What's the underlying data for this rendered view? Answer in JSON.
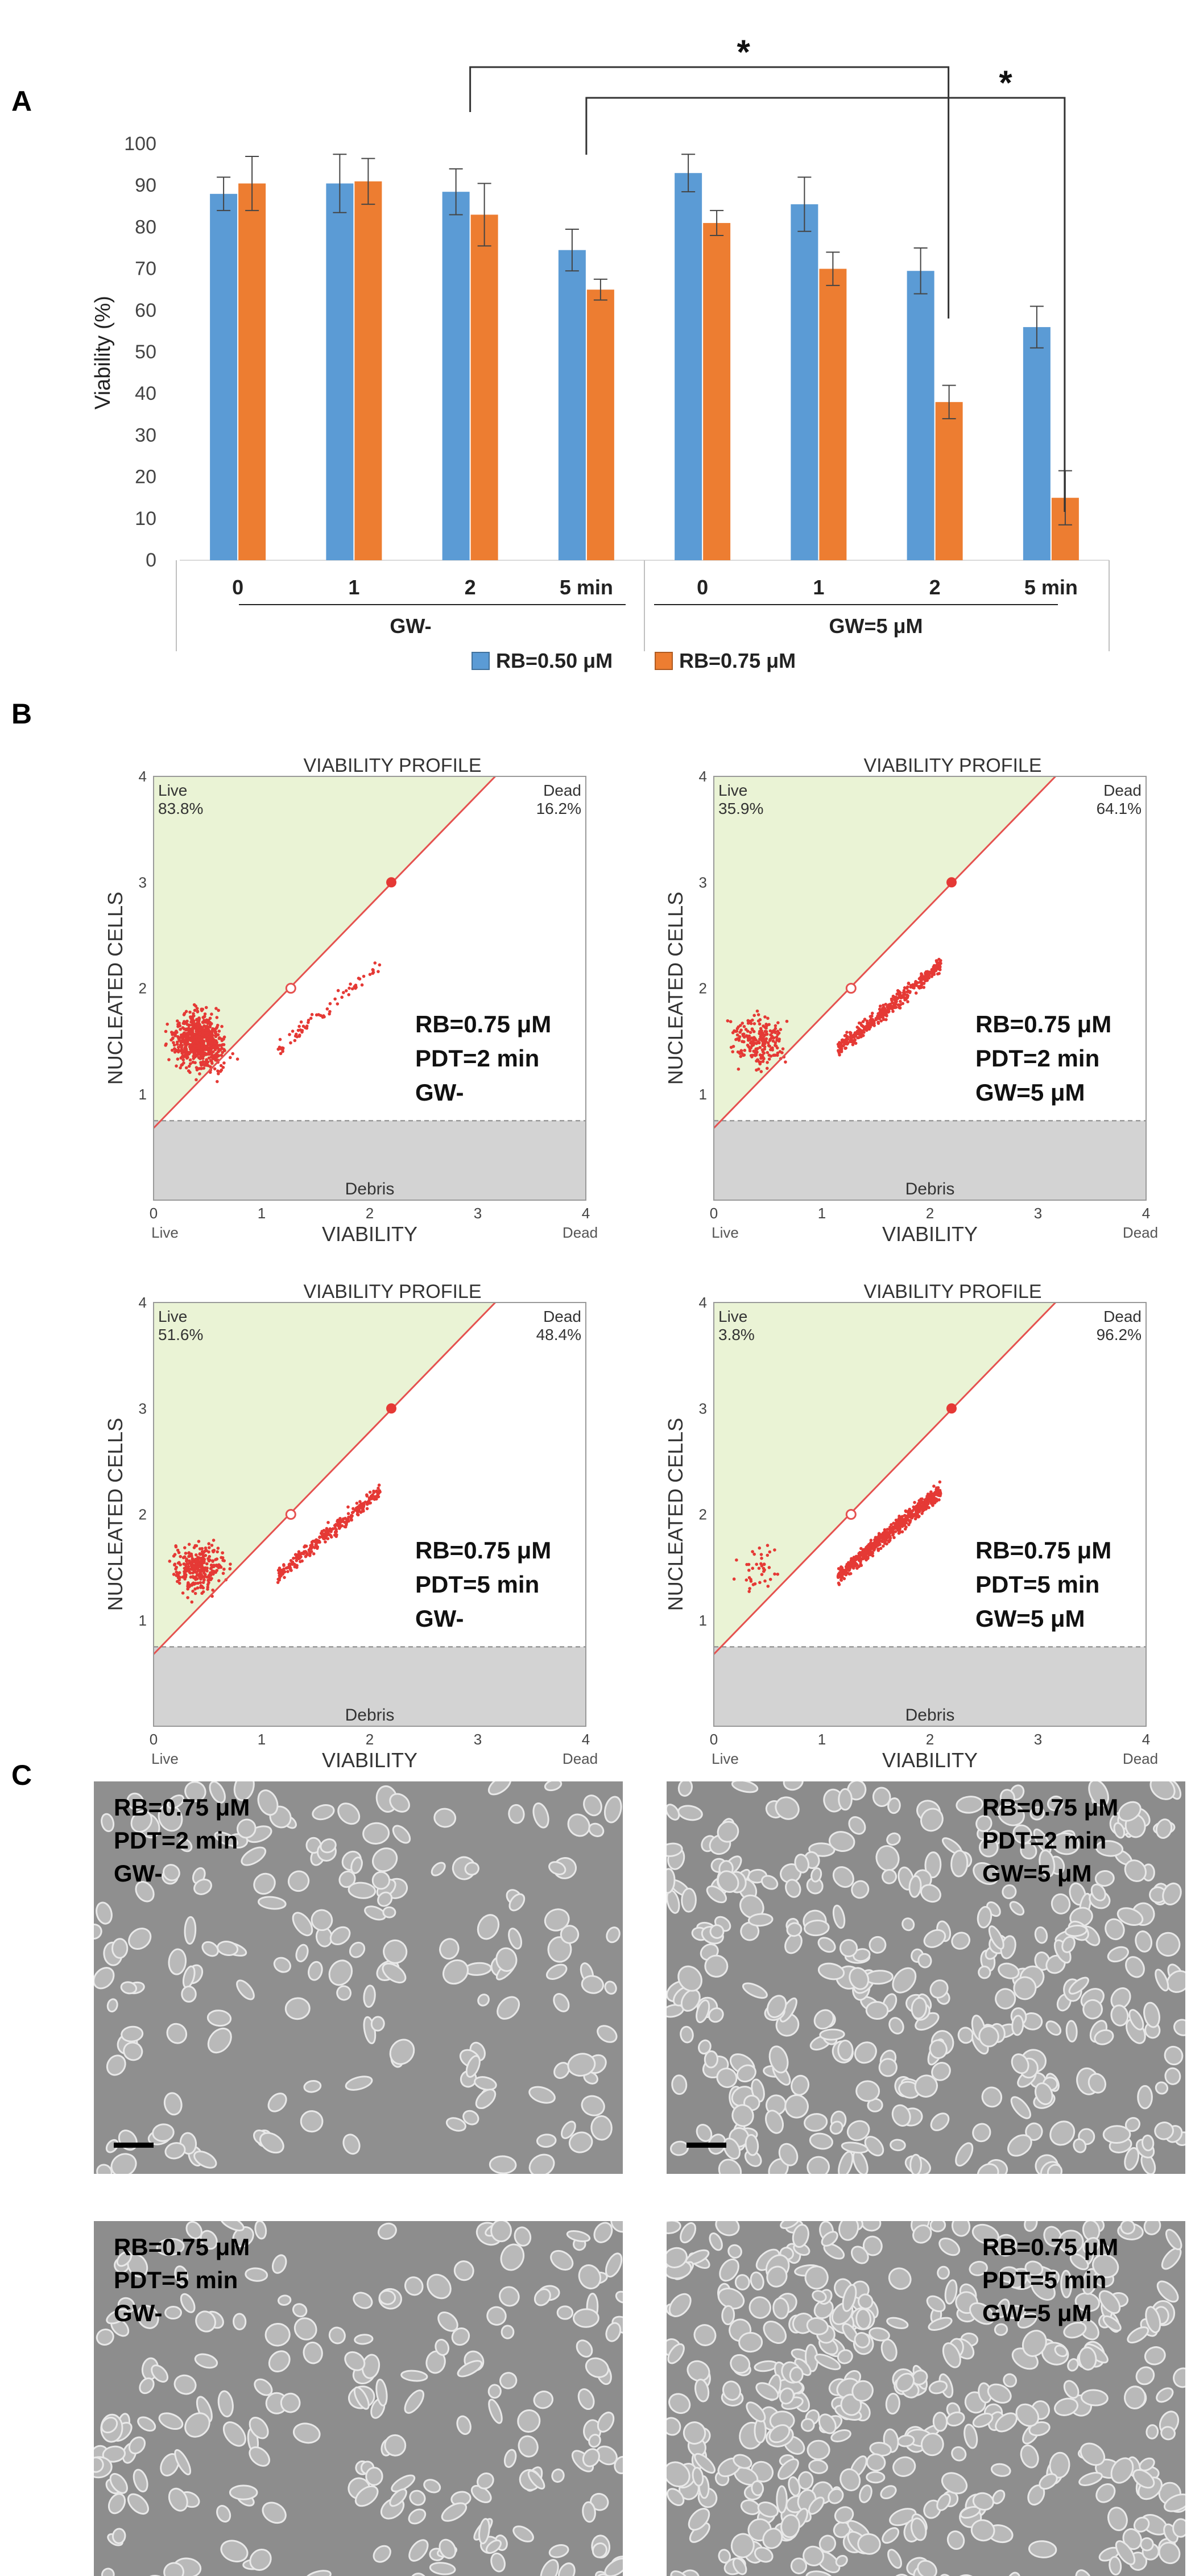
{
  "panel_labels": {
    "a": "A",
    "b": "B",
    "c": "C"
  },
  "colors": {
    "blue": "#5B9BD5",
    "orange": "#ED7D31",
    "blue_edge": "#41719C",
    "orange_edge": "#AE5A21",
    "live_region": "#EAF3D5",
    "debris": "#D3D3D3",
    "diag_line": "#E5514F",
    "dot": "#E53935",
    "micro_bg": "#8A8A8A"
  },
  "chart_data": [
    {
      "type": "bar",
      "ylabel": "Viability (%)",
      "ylim": [
        0,
        100
      ],
      "yticks": [
        "0",
        "10",
        "20",
        "30",
        "40",
        "50",
        "60",
        "70",
        "80",
        "90",
        "100"
      ],
      "categories": [
        "0",
        "1",
        "2",
        "5 min",
        "0",
        "1",
        "2",
        "5 min"
      ],
      "groups": [
        "GW-",
        "GW=5 μM"
      ],
      "series": [
        {
          "name": "RB=0.50 μM",
          "values": [
            88,
            90.5,
            88.5,
            74.5,
            93,
            85.5,
            69.5,
            56
          ],
          "errors": [
            4,
            7,
            5.5,
            5,
            4.5,
            6.5,
            5.5,
            5
          ]
        },
        {
          "name": "RB=0.75 μM",
          "values": [
            90.5,
            91,
            83,
            65,
            81,
            70,
            38,
            15
          ],
          "errors": [
            6.5,
            5.5,
            7.5,
            2.5,
            3,
            4,
            4,
            6.5
          ]
        }
      ],
      "significance": [
        {
          "from_category": 2,
          "to_category": 6,
          "label": "*"
        },
        {
          "from_category": 3,
          "to_category": 7,
          "label": "*"
        }
      ]
    },
    {
      "type": "scatter",
      "title": "VIABILITY PROFILE",
      "xlabel": "VIABILITY",
      "ylabel": "NUCLEATED CELLS",
      "xlim": [
        0,
        4
      ],
      "ylim": [
        0,
        4
      ],
      "ticks": [
        "0",
        "1",
        "2",
        "3",
        "4"
      ],
      "corner_labels": {
        "live": "Live",
        "dead": "Dead",
        "debris": "Debris"
      },
      "plots": [
        {
          "live_pct": "83.8%",
          "dead_pct": "16.2%",
          "annotation": [
            "RB=0.75 μM",
            "PDT=2 min",
            "GW-"
          ]
        },
        {
          "live_pct": "35.9%",
          "dead_pct": "64.1%",
          "annotation": [
            "RB=0.75 μM",
            "PDT=2 min",
            "GW=5 μM"
          ]
        },
        {
          "live_pct": "51.6%",
          "dead_pct": "48.4%",
          "annotation": [
            "RB=0.75 μM",
            "PDT=5 min",
            "GW-"
          ]
        },
        {
          "live_pct": "3.8%",
          "dead_pct": "96.2%",
          "annotation": [
            "RB=0.75 μM",
            "PDT=5 min",
            "GW=5 μM"
          ]
        }
      ]
    }
  ],
  "micrographs": [
    {
      "label": [
        "RB=0.75 μM",
        "PDT=2 min",
        "GW-"
      ]
    },
    {
      "label": [
        "RB=0.75 μM",
        "PDT=2 min",
        "GW=5 μM"
      ]
    },
    {
      "label": [
        "RB=0.75 μM",
        "PDT=5 min",
        "GW-"
      ]
    },
    {
      "label": [
        "RB=0.75 μM",
        "PDT=5 min",
        "GW=5 μM"
      ]
    }
  ]
}
